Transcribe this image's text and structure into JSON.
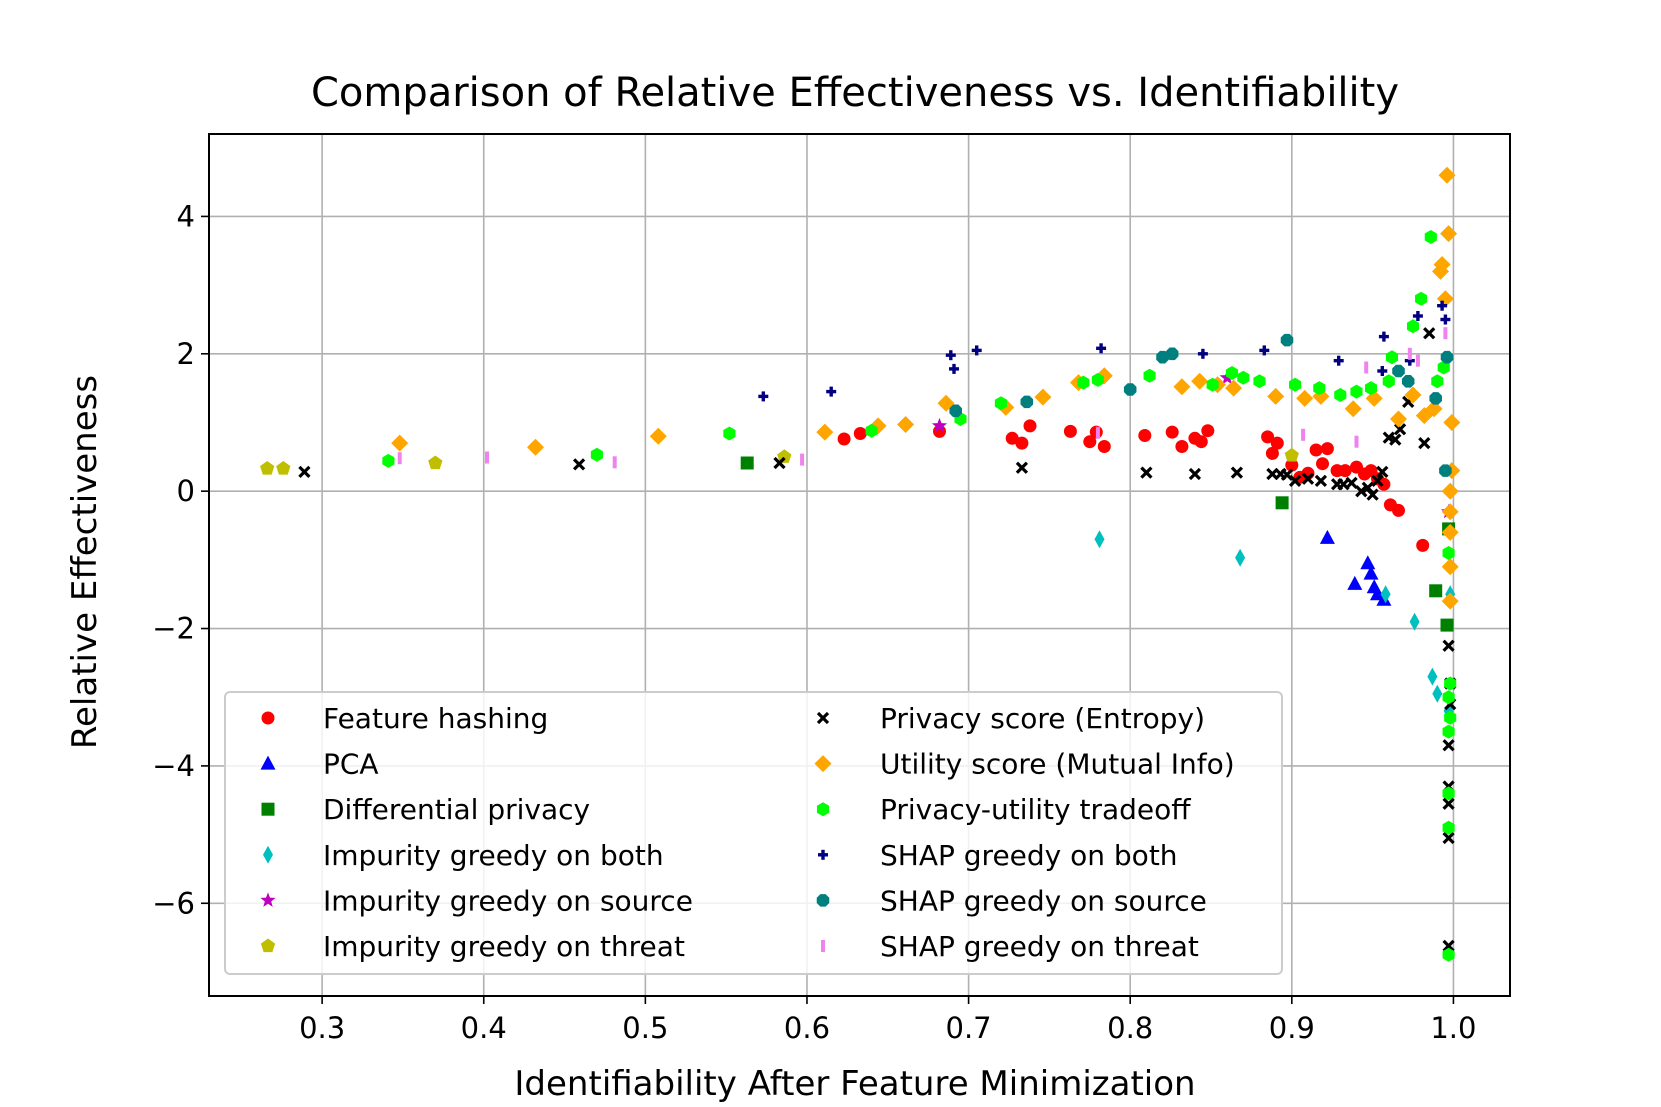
{
  "chart_data": {
    "type": "scatter",
    "title": "Comparison of Relative Effectiveness vs. Identifiability",
    "xlabel": "Identifiability After Feature Minimization",
    "ylabel": "Relative Effectiveness",
    "xlim": [
      0.23,
      1.035
    ],
    "ylim": [
      -7.35,
      5.2
    ],
    "xticks": [
      0.3,
      0.4,
      0.5,
      0.6,
      0.7,
      0.8,
      0.9,
      1.0
    ],
    "xtick_labels": [
      "0.3",
      "0.4",
      "0.5",
      "0.6",
      "0.7",
      "0.8",
      "0.9",
      "1.0"
    ],
    "yticks": [
      4,
      2,
      0,
      -2,
      -4,
      -6
    ],
    "ytick_labels": [
      "4",
      "2",
      "0",
      "−2",
      "−4",
      "−6"
    ],
    "grid": true,
    "legend_position": "lower-left",
    "series": [
      {
        "name": "Feature hashing",
        "marker": "circle",
        "color": "#ff0000",
        "points": [
          [
            0.623,
            0.76
          ],
          [
            0.633,
            0.84
          ],
          [
            0.682,
            0.87
          ],
          [
            0.727,
            0.77
          ],
          [
            0.733,
            0.7
          ],
          [
            0.738,
            0.95
          ],
          [
            0.763,
            0.87
          ],
          [
            0.775,
            0.72
          ],
          [
            0.779,
            0.86
          ],
          [
            0.784,
            0.65
          ],
          [
            0.809,
            0.81
          ],
          [
            0.826,
            0.86
          ],
          [
            0.832,
            0.65
          ],
          [
            0.84,
            0.77
          ],
          [
            0.844,
            0.72
          ],
          [
            0.848,
            0.88
          ],
          [
            0.885,
            0.79
          ],
          [
            0.888,
            0.55
          ],
          [
            0.891,
            0.7
          ],
          [
            0.9,
            0.38
          ],
          [
            0.905,
            0.2
          ],
          [
            0.91,
            0.26
          ],
          [
            0.915,
            0.6
          ],
          [
            0.919,
            0.4
          ],
          [
            0.922,
            0.62
          ],
          [
            0.928,
            0.3
          ],
          [
            0.933,
            0.3
          ],
          [
            0.94,
            0.35
          ],
          [
            0.945,
            0.25
          ],
          [
            0.949,
            0.3
          ],
          [
            0.953,
            0.18
          ],
          [
            0.957,
            0.1
          ],
          [
            0.961,
            -0.2
          ],
          [
            0.966,
            -0.28
          ],
          [
            0.981,
            -0.79
          ]
        ]
      },
      {
        "name": "PCA",
        "marker": "triangle",
        "color": "#0000ff",
        "points": [
          [
            0.922,
            -0.68
          ],
          [
            0.939,
            -1.35
          ],
          [
            0.947,
            -1.05
          ],
          [
            0.949,
            -1.2
          ],
          [
            0.951,
            -1.4
          ],
          [
            0.953,
            -1.5
          ],
          [
            0.957,
            -1.58
          ]
        ]
      },
      {
        "name": "Differential privacy",
        "marker": "square",
        "color": "#008000",
        "points": [
          [
            0.563,
            0.41
          ],
          [
            0.894,
            -0.17
          ],
          [
            0.989,
            -1.45
          ],
          [
            0.996,
            -1.95
          ],
          [
            0.997,
            -0.55
          ]
        ]
      },
      {
        "name": "Impurity greedy on both",
        "marker": "thin-diamond",
        "color": "#00bfbf",
        "points": [
          [
            0.781,
            -0.7
          ],
          [
            0.868,
            -0.97
          ],
          [
            0.958,
            -1.5
          ],
          [
            0.976,
            -1.9
          ],
          [
            0.987,
            -2.7
          ],
          [
            0.99,
            -2.95
          ],
          [
            0.997,
            -3.2
          ],
          [
            0.998,
            -1.5
          ]
        ]
      },
      {
        "name": "Impurity greedy on source",
        "marker": "star",
        "color": "#bf00bf",
        "points": [
          [
            0.682,
            0.95
          ],
          [
            0.86,
            1.65
          ],
          [
            0.997,
            -0.3
          ]
        ]
      },
      {
        "name": "Impurity greedy on threat",
        "marker": "pentagon",
        "color": "#bfbf00",
        "points": [
          [
            0.266,
            0.33
          ],
          [
            0.276,
            0.33
          ],
          [
            0.37,
            0.41
          ],
          [
            0.586,
            0.5
          ],
          [
            0.9,
            0.52
          ]
        ]
      },
      {
        "name": "Privacy score (Entropy)",
        "marker": "x",
        "color": "#000000",
        "points": [
          [
            0.289,
            0.28
          ],
          [
            0.459,
            0.39
          ],
          [
            0.583,
            0.41
          ],
          [
            0.733,
            0.34
          ],
          [
            0.81,
            0.27
          ],
          [
            0.84,
            0.25
          ],
          [
            0.866,
            0.27
          ],
          [
            0.888,
            0.25
          ],
          [
            0.893,
            0.25
          ],
          [
            0.897,
            0.24
          ],
          [
            0.902,
            0.15
          ],
          [
            0.91,
            0.18
          ],
          [
            0.918,
            0.15
          ],
          [
            0.928,
            0.1
          ],
          [
            0.932,
            0.1
          ],
          [
            0.937,
            0.12
          ],
          [
            0.943,
            0.0
          ],
          [
            0.947,
            0.05
          ],
          [
            0.95,
            -0.05
          ],
          [
            0.953,
            0.15
          ],
          [
            0.956,
            0.28
          ],
          [
            0.96,
            0.78
          ],
          [
            0.964,
            0.75
          ],
          [
            0.967,
            0.9
          ],
          [
            0.972,
            1.3
          ],
          [
            0.982,
            0.7
          ],
          [
            0.985,
            2.3
          ],
          [
            0.997,
            -2.25
          ],
          [
            0.997,
            -3.7
          ],
          [
            0.997,
            -4.3
          ],
          [
            0.997,
            -4.55
          ],
          [
            0.997,
            -5.05
          ],
          [
            0.997,
            -6.62
          ],
          [
            0.998,
            -2.8
          ],
          [
            0.998,
            -3.1
          ]
        ]
      },
      {
        "name": "Utility score (Mutual Info)",
        "marker": "diamond",
        "color": "#ffa500",
        "points": [
          [
            0.348,
            0.7
          ],
          [
            0.432,
            0.64
          ],
          [
            0.508,
            0.8
          ],
          [
            0.611,
            0.86
          ],
          [
            0.644,
            0.95
          ],
          [
            0.661,
            0.97
          ],
          [
            0.686,
            1.28
          ],
          [
            0.723,
            1.22
          ],
          [
            0.746,
            1.37
          ],
          [
            0.768,
            1.58
          ],
          [
            0.784,
            1.68
          ],
          [
            0.832,
            1.52
          ],
          [
            0.843,
            1.6
          ],
          [
            0.854,
            1.55
          ],
          [
            0.864,
            1.5
          ],
          [
            0.89,
            1.38
          ],
          [
            0.908,
            1.35
          ],
          [
            0.918,
            1.38
          ],
          [
            0.938,
            1.2
          ],
          [
            0.951,
            1.35
          ],
          [
            0.966,
            1.05
          ],
          [
            0.975,
            1.4
          ],
          [
            0.982,
            1.1
          ],
          [
            0.988,
            1.2
          ],
          [
            0.992,
            3.2
          ],
          [
            0.993,
            3.3
          ],
          [
            0.995,
            2.8
          ],
          [
            0.996,
            4.6
          ],
          [
            0.997,
            3.75
          ],
          [
            0.998,
            0.0
          ],
          [
            0.998,
            -0.3
          ],
          [
            0.998,
            -0.6
          ],
          [
            0.998,
            -1.1
          ],
          [
            0.998,
            -1.6
          ],
          [
            0.999,
            1.0
          ],
          [
            0.999,
            0.3
          ]
        ]
      },
      {
        "name": "Privacy-utility tradeoff",
        "marker": "hexagon",
        "color": "#00ff00",
        "points": [
          [
            0.341,
            0.44
          ],
          [
            0.47,
            0.53
          ],
          [
            0.552,
            0.84
          ],
          [
            0.64,
            0.88
          ],
          [
            0.695,
            1.05
          ],
          [
            0.72,
            1.28
          ],
          [
            0.771,
            1.58
          ],
          [
            0.78,
            1.62
          ],
          [
            0.812,
            1.68
          ],
          [
            0.851,
            1.55
          ],
          [
            0.863,
            1.72
          ],
          [
            0.87,
            1.65
          ],
          [
            0.88,
            1.6
          ],
          [
            0.902,
            1.55
          ],
          [
            0.917,
            1.5
          ],
          [
            0.93,
            1.4
          ],
          [
            0.94,
            1.45
          ],
          [
            0.949,
            1.5
          ],
          [
            0.96,
            1.6
          ],
          [
            0.962,
            1.95
          ],
          [
            0.975,
            2.4
          ],
          [
            0.98,
            2.8
          ],
          [
            0.986,
            3.7
          ],
          [
            0.99,
            1.6
          ],
          [
            0.994,
            1.8
          ],
          [
            0.997,
            -0.9
          ],
          [
            0.997,
            -3.0
          ],
          [
            0.997,
            -3.5
          ],
          [
            0.997,
            -4.4
          ],
          [
            0.997,
            -4.9
          ],
          [
            0.997,
            -6.75
          ],
          [
            0.998,
            -2.8
          ],
          [
            0.998,
            -3.3
          ]
        ]
      },
      {
        "name": "SHAP greedy on both",
        "marker": "plus",
        "color": "#000080",
        "points": [
          [
            0.573,
            1.38
          ],
          [
            0.615,
            1.45
          ],
          [
            0.689,
            1.98
          ],
          [
            0.691,
            1.78
          ],
          [
            0.705,
            2.05
          ],
          [
            0.782,
            2.08
          ],
          [
            0.845,
            2.0
          ],
          [
            0.883,
            2.05
          ],
          [
            0.929,
            1.9
          ],
          [
            0.956,
            1.75
          ],
          [
            0.957,
            2.25
          ],
          [
            0.973,
            1.9
          ],
          [
            0.978,
            2.55
          ],
          [
            0.993,
            2.7
          ],
          [
            0.995,
            2.5
          ]
        ]
      },
      {
        "name": "SHAP greedy on source",
        "marker": "octagon",
        "color": "#007f7f",
        "points": [
          [
            0.692,
            1.17
          ],
          [
            0.736,
            1.3
          ],
          [
            0.8,
            1.48
          ],
          [
            0.82,
            1.95
          ],
          [
            0.826,
            2.0
          ],
          [
            0.897,
            2.2
          ],
          [
            0.966,
            1.75
          ],
          [
            0.972,
            1.6
          ],
          [
            0.989,
            1.35
          ],
          [
            0.995,
            0.3
          ],
          [
            0.996,
            1.95
          ]
        ]
      },
      {
        "name": "SHAP greedy on threat",
        "marker": "vline",
        "color": "#ee82ee",
        "points": [
          [
            0.348,
            0.48
          ],
          [
            0.402,
            0.49
          ],
          [
            0.481,
            0.42
          ],
          [
            0.597,
            0.46
          ],
          [
            0.78,
            0.85
          ],
          [
            0.907,
            0.82
          ],
          [
            0.94,
            0.72
          ],
          [
            0.946,
            1.8
          ],
          [
            0.973,
            2.0
          ],
          [
            0.978,
            1.9
          ],
          [
            0.995,
            2.3
          ]
        ]
      }
    ]
  }
}
